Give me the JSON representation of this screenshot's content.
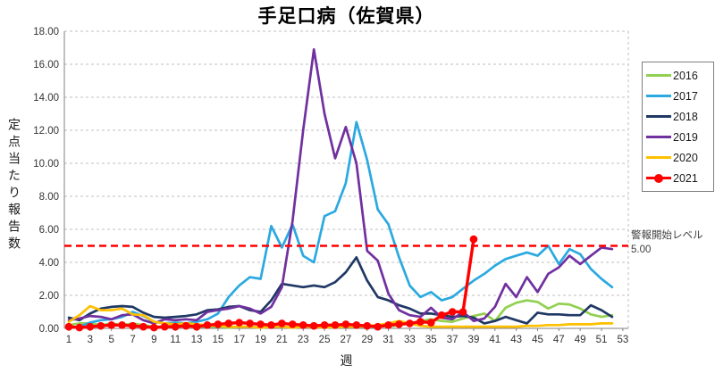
{
  "chart_data": {
    "type": "line",
    "title": "手足口病（佐賀県）",
    "xlabel": "週",
    "ylabel": "定点当たり報告数",
    "xlim": [
      1,
      53.5
    ],
    "ylim": [
      0,
      18
    ],
    "y_tick_step": 2,
    "x_ticks": [
      1,
      3,
      5,
      7,
      9,
      11,
      13,
      15,
      17,
      19,
      21,
      23,
      25,
      27,
      29,
      31,
      33,
      35,
      37,
      39,
      41,
      43,
      45,
      47,
      49,
      51,
      53
    ],
    "grid": true,
    "legend_position": "right",
    "threshold": {
      "value": 5.0,
      "label": "警報開始レベル",
      "value_text": "5.00",
      "color": "#FF0000"
    },
    "series": [
      {
        "name": "2016",
        "color": "#92D050",
        "marker": "none",
        "x_start": 1,
        "values": [
          0.2,
          0.3,
          0.3,
          0.2,
          0.3,
          0.2,
          0.3,
          0.2,
          0.1,
          0.1,
          0.1,
          0.15,
          0.1,
          0.1,
          0.1,
          0.05,
          0.1,
          0.1,
          0.05,
          0.1,
          0.1,
          0.05,
          0.1,
          0.1,
          0.1,
          0.05,
          0.1,
          0.1,
          0.1,
          0.15,
          0.1,
          0.2,
          0.3,
          0.45,
          0.55,
          0.45,
          0.4,
          0.6,
          0.75,
          0.9,
          0.45,
          1.25,
          1.55,
          1.7,
          1.6,
          1.2,
          1.5,
          1.45,
          1.2,
          0.85,
          0.7,
          0.8
        ]
      },
      {
        "name": "2017",
        "color": "#2BA9E0",
        "marker": "none",
        "x_start": 1,
        "values": [
          0.05,
          0.1,
          0.35,
          0.5,
          0.55,
          0.7,
          1.0,
          0.75,
          0.4,
          0.3,
          0.35,
          0.3,
          0.4,
          0.55,
          0.9,
          1.9,
          2.6,
          3.1,
          3.0,
          6.2,
          4.9,
          6.3,
          4.4,
          4.0,
          6.8,
          7.1,
          8.8,
          12.5,
          10.2,
          7.2,
          6.3,
          4.3,
          2.6,
          1.9,
          2.2,
          1.7,
          1.9,
          2.4,
          2.9,
          3.3,
          3.8,
          4.2,
          4.4,
          4.6,
          4.4,
          5.0,
          3.9,
          4.8,
          4.5,
          3.6,
          3.0,
          2.5
        ]
      },
      {
        "name": "2018",
        "color": "#1F3864",
        "marker": "none",
        "x_start": 1,
        "values": [
          0.65,
          0.5,
          0.9,
          1.2,
          1.3,
          1.35,
          1.3,
          0.95,
          0.7,
          0.65,
          0.7,
          0.75,
          0.85,
          1.1,
          1.15,
          1.3,
          1.35,
          1.1,
          1.0,
          1.7,
          2.7,
          2.6,
          2.5,
          2.6,
          2.5,
          2.8,
          3.4,
          4.3,
          2.9,
          1.9,
          1.7,
          1.4,
          1.2,
          0.9,
          0.9,
          0.8,
          0.7,
          0.75,
          0.65,
          0.3,
          0.45,
          0.7,
          0.5,
          0.3,
          0.95,
          0.85,
          0.85,
          0.8,
          0.8,
          1.4,
          1.1,
          0.7
        ]
      },
      {
        "name": "2019",
        "color": "#7030A0",
        "marker": "none",
        "x_start": 1,
        "values": [
          0.5,
          0.6,
          0.75,
          0.7,
          0.55,
          0.8,
          0.85,
          0.5,
          0.3,
          0.55,
          0.5,
          0.55,
          0.5,
          1.0,
          1.1,
          1.2,
          1.35,
          1.2,
          0.9,
          1.3,
          2.5,
          6.5,
          12.0,
          16.9,
          13.0,
          10.3,
          12.2,
          10.0,
          4.7,
          4.1,
          2.1,
          1.1,
          0.8,
          0.7,
          1.25,
          0.65,
          0.55,
          1.0,
          0.45,
          0.6,
          1.3,
          2.7,
          1.9,
          3.1,
          2.2,
          3.3,
          3.7,
          4.4,
          3.9,
          4.4,
          4.9,
          4.8
        ]
      },
      {
        "name": "2020",
        "color": "#FFC000",
        "marker": "none",
        "x_start": 1,
        "values": [
          0.4,
          0.8,
          1.35,
          1.1,
          1.1,
          1.2,
          0.85,
          0.8,
          0.4,
          0.3,
          0.25,
          0.3,
          0.25,
          0.2,
          0.15,
          0.1,
          0.1,
          0.1,
          0.05,
          0.1,
          0.1,
          0.05,
          0.1,
          0.1,
          0.05,
          0.1,
          0.1,
          0.1,
          0.15,
          0.2,
          0.3,
          0.45,
          0.3,
          0.15,
          0.1,
          0.1,
          0.1,
          0.1,
          0.1,
          0.1,
          0.1,
          0.1,
          0.1,
          0.15,
          0.15,
          0.2,
          0.2,
          0.25,
          0.25,
          0.25,
          0.3,
          0.3
        ]
      },
      {
        "name": "2021",
        "color": "#FF0000",
        "marker": "circle",
        "x_start": 1,
        "values": [
          0.1,
          0.05,
          0.1,
          0.15,
          0.2,
          0.2,
          0.15,
          0.1,
          0.05,
          0.1,
          0.1,
          0.15,
          0.1,
          0.2,
          0.25,
          0.3,
          0.35,
          0.3,
          0.25,
          0.2,
          0.3,
          0.25,
          0.2,
          0.15,
          0.2,
          0.2,
          0.25,
          0.2,
          0.15,
          0.1,
          0.2,
          0.25,
          0.3,
          0.4,
          0.35,
          0.8,
          1.0,
          1.0,
          5.4
        ]
      }
    ]
  },
  "annotation": {
    "line1": "警報開始レベル",
    "line2": "5.00"
  }
}
